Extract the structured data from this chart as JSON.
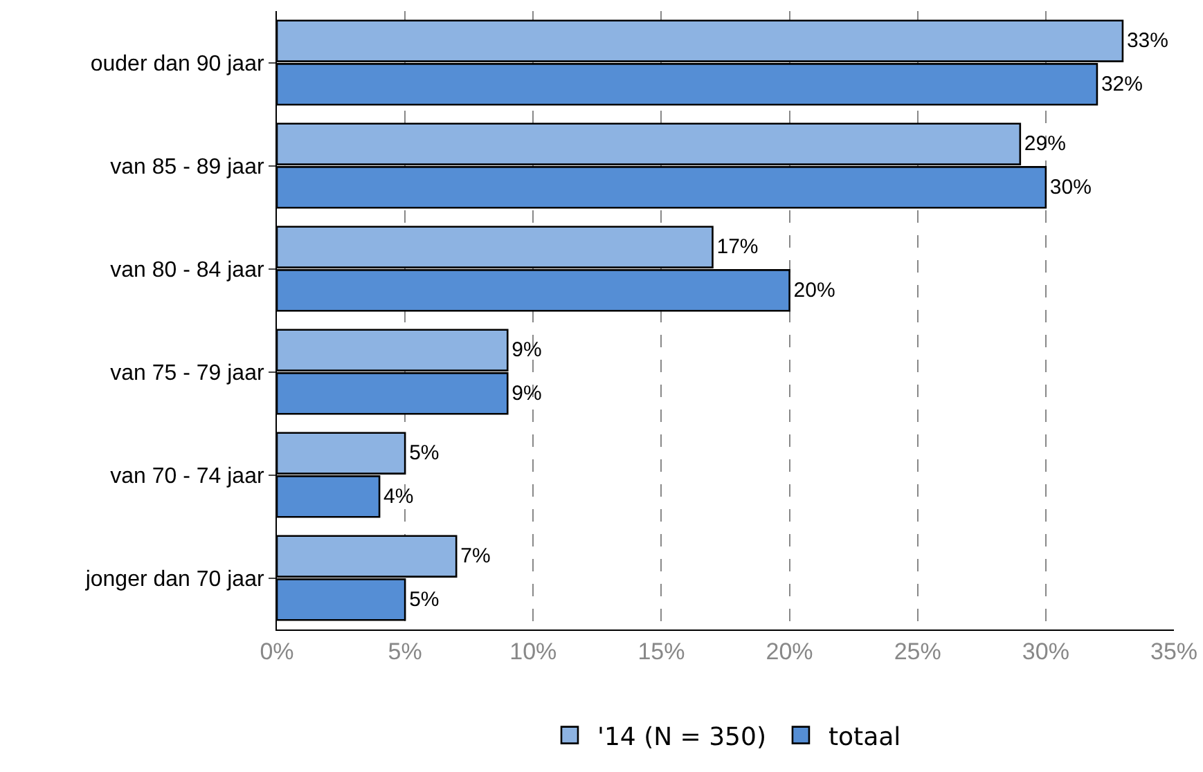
{
  "chart_data": {
    "type": "bar",
    "orientation": "horizontal",
    "categories": [
      "ouder dan 90 jaar",
      "van 85 - 89 jaar",
      "van 80 - 84 jaar",
      "van 75 - 79 jaar",
      "van 70 - 74 jaar",
      "jonger dan 70 jaar"
    ],
    "series": [
      {
        "name": "'14 (N = 350)",
        "color": "#8db3e2",
        "values": [
          33,
          29,
          17,
          9,
          5,
          7
        ],
        "value_labels": [
          "33%",
          "29%",
          "17%",
          "9%",
          "5%",
          "7%"
        ]
      },
      {
        "name": "totaal",
        "color": "#558ed5",
        "values": [
          32,
          30,
          20,
          9,
          4,
          5
        ],
        "value_labels": [
          "32%",
          "30%",
          "20%",
          "9%",
          "4%",
          "5%"
        ]
      }
    ],
    "xlim": [
      0,
      35
    ],
    "xticks": [
      {
        "value": 0,
        "label": "0%"
      },
      {
        "value": 5,
        "label": "5%"
      },
      {
        "value": 10,
        "label": "10%"
      },
      {
        "value": 15,
        "label": "15%"
      },
      {
        "value": 20,
        "label": "20%"
      },
      {
        "value": 25,
        "label": "25%"
      },
      {
        "value": 30,
        "label": "30%"
      },
      {
        "value": 35,
        "label": "35%"
      }
    ],
    "grid": "x",
    "legend": "bottom"
  }
}
